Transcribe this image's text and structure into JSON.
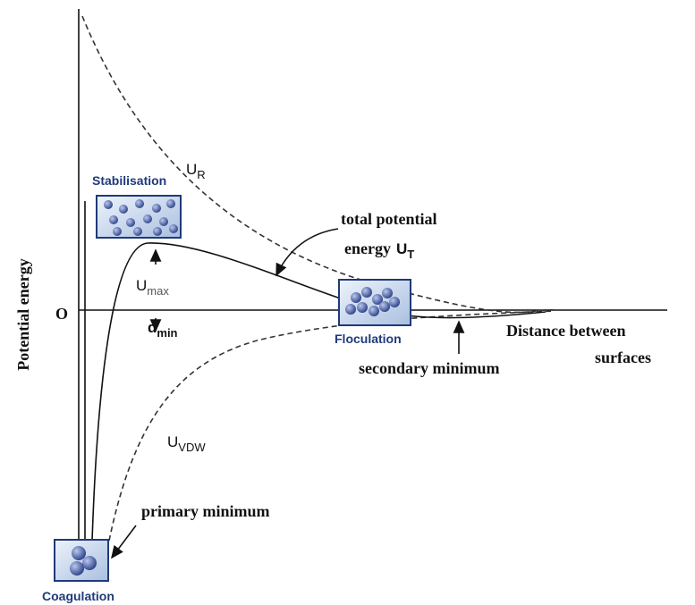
{
  "axis": {
    "y_label": "Potential energy",
    "origin": "O",
    "x_label": [
      "Distance between",
      "surfaces"
    ]
  },
  "labels": {
    "stabilisation": "Stabilisation",
    "floculation": "Floculation",
    "coagulation": "Coagulation",
    "u_r": {
      "symbol": "U",
      "subscript": "R"
    },
    "total": {
      "line1": "total potential",
      "line2": "energy",
      "symbol": "U",
      "subscript": "T"
    },
    "u_max": {
      "symbol": "U",
      "subscript": "max"
    },
    "d_min": {
      "symbol": "d",
      "subscript": "min"
    },
    "u_vdw": {
      "symbol": "U",
      "subscript": "VDW"
    },
    "secondary_minimum": "secondary minimum",
    "primary_minimum": "primary minimum"
  }
}
